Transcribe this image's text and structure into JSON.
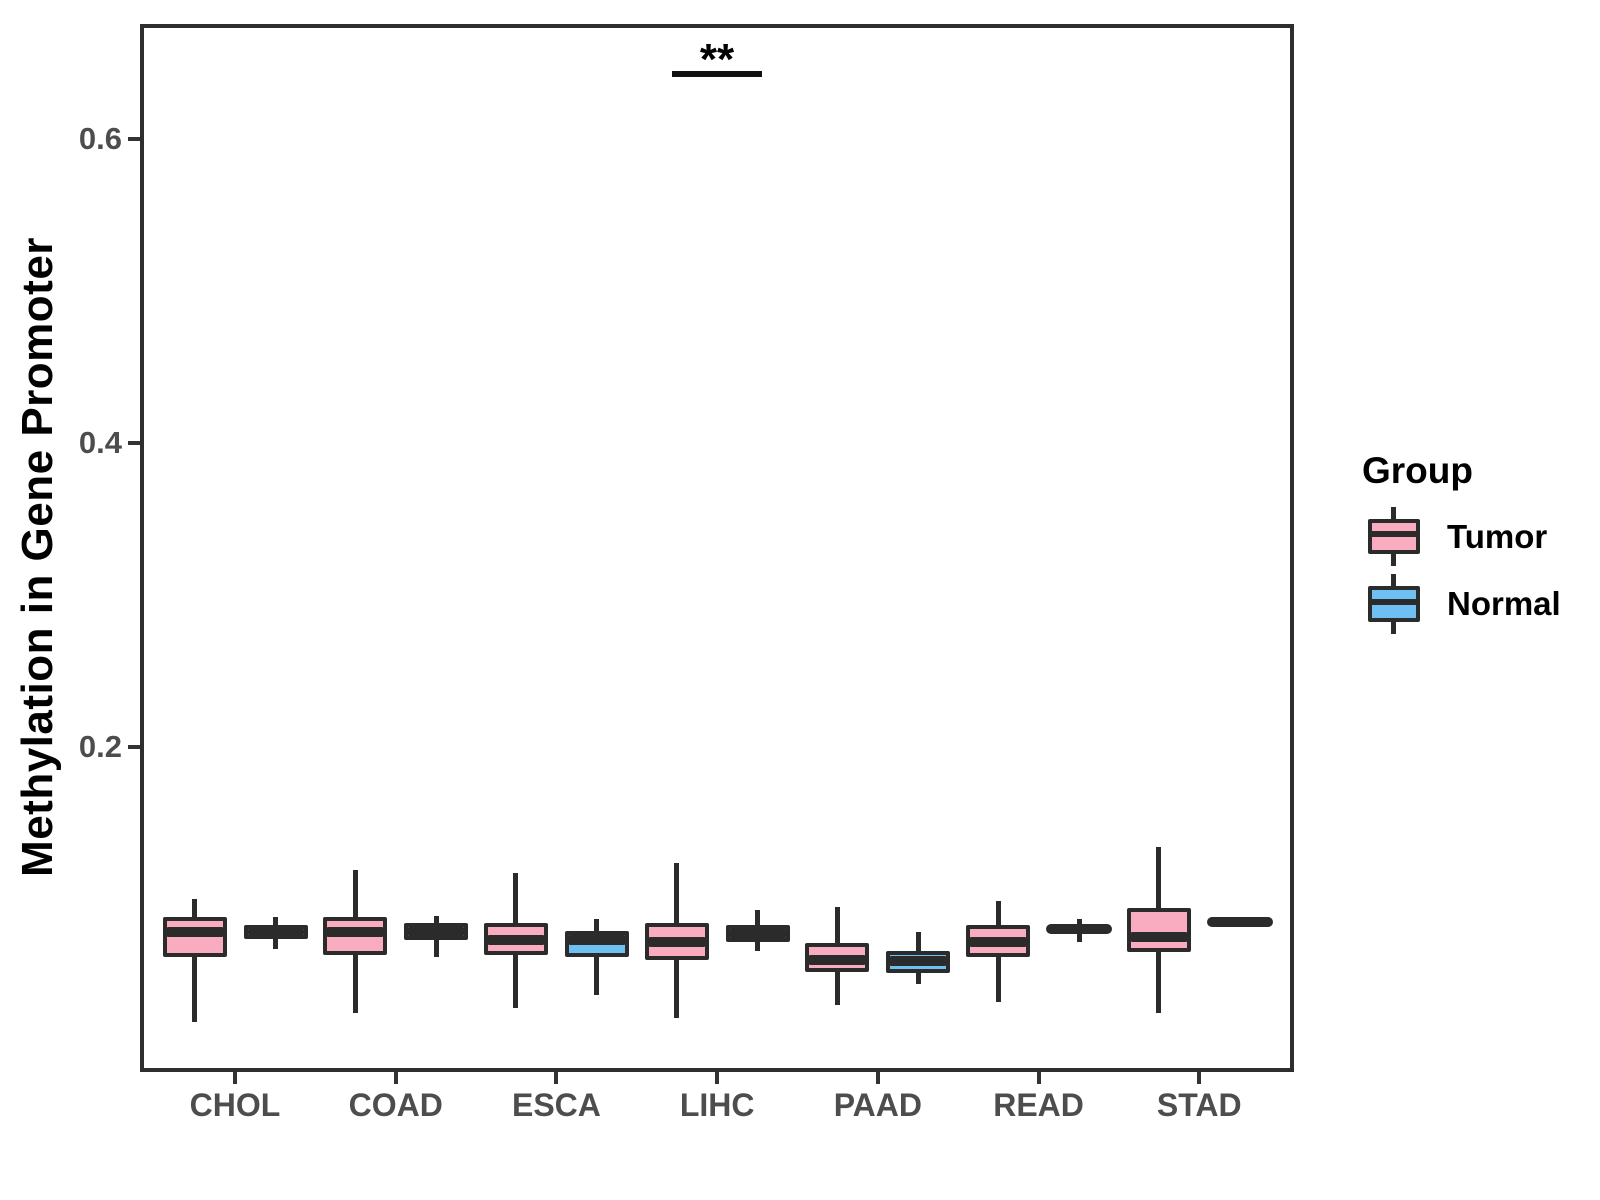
{
  "figure": {
    "background": "#FFFFFF",
    "panel_border_color": "#2E2E2E",
    "axis_text_color": "#4D4D4D",
    "axis_title_color": "#000000",
    "y_axis": {
      "title": "Methylation in Gene Promoter",
      "tick_labels": [
        "0.6",
        "0.4",
        "0.2"
      ],
      "tick_values": [
        0.6,
        0.4,
        0.2
      ]
    },
    "x_axis": {
      "tick_labels": [
        "CHOL",
        "COAD",
        "ESCA",
        "LIHC",
        "PAAD",
        "READ",
        "STAD"
      ]
    },
    "legend": {
      "title": "Group",
      "items": [
        {
          "label": "Tumor",
          "color": "#F9ACBF"
        },
        {
          "label": "Normal",
          "color": "#6EC0F2"
        }
      ]
    },
    "significance": {
      "label": "**",
      "category": "LIHC"
    }
  },
  "chart_data": {
    "type": "boxplot",
    "title": "",
    "xlabel": "",
    "ylabel": "Methylation in Gene Promoter",
    "categories": [
      "CHOL",
      "COAD",
      "ESCA",
      "LIHC",
      "PAAD",
      "READ",
      "STAD"
    ],
    "groups": [
      "Tumor",
      "Normal"
    ],
    "y_ticks": [
      0.2,
      0.4,
      0.6
    ],
    "ylim": [
      -0.014,
      0.676
    ],
    "grid": false,
    "legend_position": "right",
    "series": [
      {
        "name": "Tumor",
        "color": "#F9ACBF",
        "stats": [
          {
            "category": "CHOL",
            "whisker_low": 0.019,
            "q1": 0.062,
            "median": 0.078,
            "q3": 0.088,
            "whisker_high": 0.1
          },
          {
            "category": "COAD",
            "whisker_low": 0.025,
            "q1": 0.063,
            "median": 0.078,
            "q3": 0.088,
            "whisker_high": 0.119
          },
          {
            "category": "ESCA",
            "whisker_low": 0.028,
            "q1": 0.063,
            "median": 0.073,
            "q3": 0.084,
            "whisker_high": 0.117
          },
          {
            "category": "LIHC",
            "whisker_low": 0.022,
            "q1": 0.06,
            "median": 0.072,
            "q3": 0.084,
            "whisker_high": 0.124
          },
          {
            "category": "PAAD",
            "whisker_low": 0.03,
            "q1": 0.052,
            "median": 0.06,
            "q3": 0.071,
            "whisker_high": 0.095
          },
          {
            "category": "READ",
            "whisker_low": 0.032,
            "q1": 0.062,
            "median": 0.072,
            "q3": 0.083,
            "whisker_high": 0.099
          },
          {
            "category": "STAD",
            "whisker_low": 0.025,
            "q1": 0.065,
            "median": 0.075,
            "q3": 0.094,
            "whisker_high": 0.134
          }
        ]
      },
      {
        "name": "Normal",
        "color": "#6EC0F2",
        "stats": [
          {
            "category": "CHOL",
            "whisker_low": 0.067,
            "q1": 0.074,
            "median": 0.081,
            "q3": 0.083,
            "whisker_high": 0.088
          },
          {
            "category": "COAD",
            "whisker_low": 0.062,
            "q1": 0.073,
            "median": 0.08,
            "q3": 0.084,
            "whisker_high": 0.089
          },
          {
            "category": "ESCA",
            "whisker_low": 0.037,
            "q1": 0.062,
            "median": 0.074,
            "q3": 0.079,
            "whisker_high": 0.087
          },
          {
            "category": "LIHC",
            "whisker_low": 0.066,
            "q1": 0.072,
            "median": 0.076,
            "q3": 0.083,
            "whisker_high": 0.093
          },
          {
            "category": "PAAD",
            "whisker_low": 0.044,
            "q1": 0.051,
            "median": 0.059,
            "q3": 0.066,
            "whisker_high": 0.078
          },
          {
            "category": "READ",
            "whisker_low": 0.072,
            "q1": 0.075,
            "median": 0.08,
            "q3": 0.082,
            "whisker_high": 0.087
          },
          {
            "category": "STAD",
            "whisker_low": 0.084,
            "q1": 0.0845,
            "median": 0.085,
            "q3": 0.0855,
            "whisker_high": 0.086
          }
        ]
      }
    ],
    "annotations": [
      {
        "text": "**",
        "category": "LIHC",
        "y": 0.645,
        "type": "significance-bar"
      }
    ]
  }
}
